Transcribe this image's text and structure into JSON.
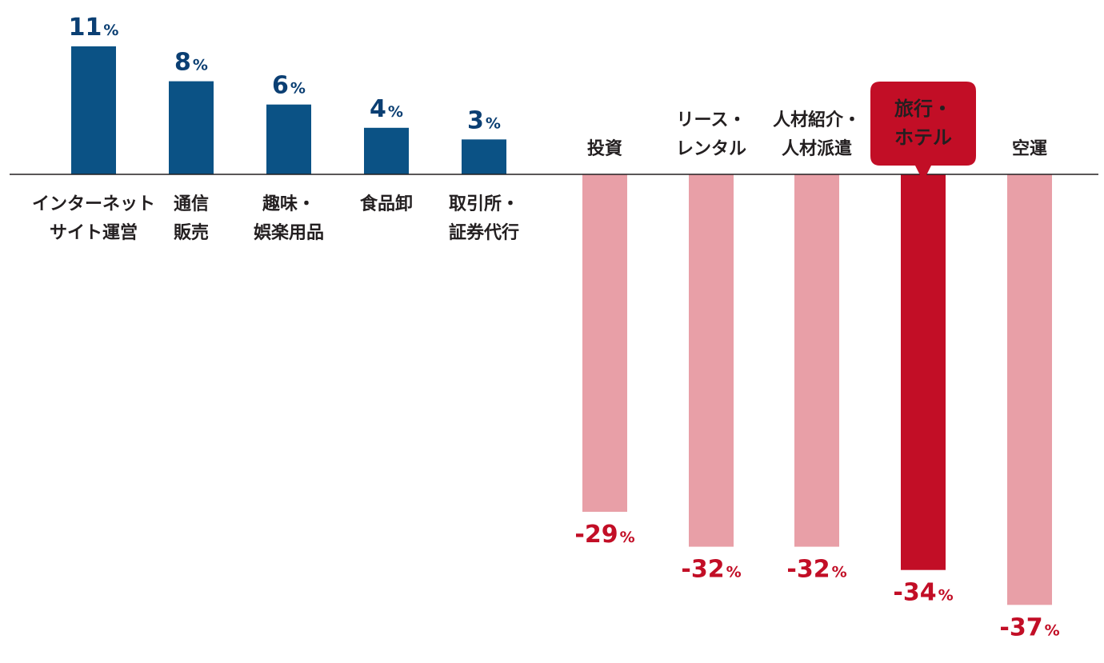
{
  "chart_data": {
    "type": "bar",
    "title": "",
    "xlabel": "",
    "ylabel": "",
    "ylim": [
      -37,
      11
    ],
    "grid": false,
    "unit": "%",
    "colors": {
      "positive": "#0b5285",
      "negative": "#e89fa7",
      "highlight": "#c20e26",
      "negative_label": "#c20e26",
      "positive_label": "#0b3f73",
      "axis": "#231f20",
      "category_text": "#231f20",
      "callout_text": "#ffffff"
    },
    "categories": [
      {
        "lines": [
          "インターネット",
          "サイト運営"
        ],
        "value": 11,
        "label": "11"
      },
      {
        "lines": [
          "通信",
          "販売"
        ],
        "value": 8,
        "label": "8"
      },
      {
        "lines": [
          "趣味・",
          "娯楽用品"
        ],
        "value": 6,
        "label": "6"
      },
      {
        "lines": [
          "食品卸"
        ],
        "value": 4,
        "label": "4"
      },
      {
        "lines": [
          "取引所・",
          "証券代行"
        ],
        "value": 3,
        "label": "3"
      },
      {
        "lines": [
          "投資"
        ],
        "value": -29,
        "label": "-29"
      },
      {
        "lines": [
          "リース・",
          "レンタル"
        ],
        "value": -32,
        "label": "-32"
      },
      {
        "lines": [
          "人材紹介・",
          "人材派遣"
        ],
        "value": -32,
        "label": "-32"
      },
      {
        "lines": [
          "旅行・",
          "ホテル"
        ],
        "value": -34,
        "label": "-34",
        "highlight": true
      },
      {
        "lines": [
          "空運"
        ],
        "value": -37,
        "label": "-37"
      }
    ]
  }
}
